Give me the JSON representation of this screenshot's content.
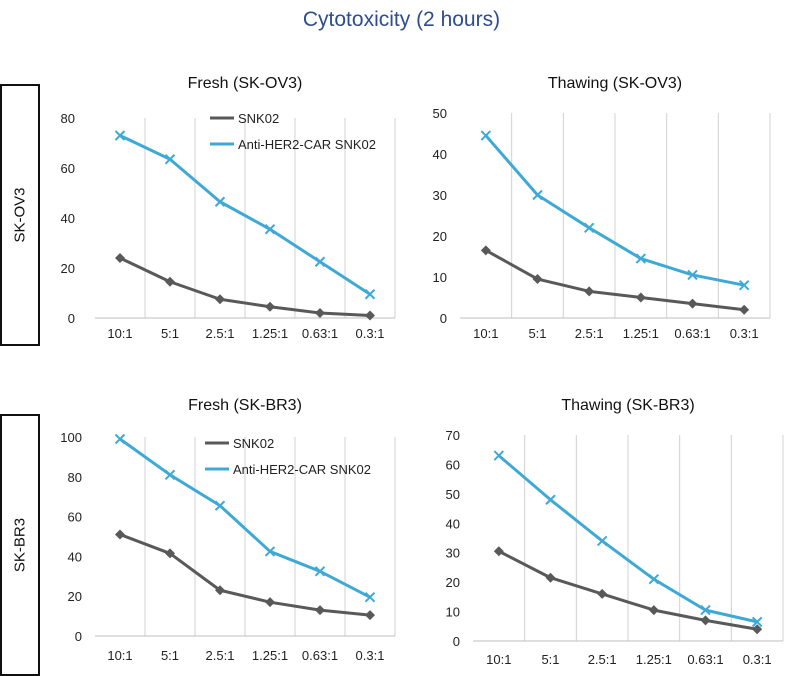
{
  "title": "Cytotoxicity (2 hours)",
  "row_labels": [
    "SK-OV3",
    "SK-BR3"
  ],
  "colors": {
    "snk02": "#595959",
    "car": "#3fa9d6",
    "grid": "#d0d0d0",
    "axis": "#bfbfbf",
    "title": "#2e4d8f"
  },
  "chart_data": [
    {
      "type": "line",
      "title": "Fresh (SK-OV3)",
      "categories": [
        "10:1",
        "5:1",
        "2.5:1",
        "1.25:1",
        "0.63:1",
        "0.3:1"
      ],
      "ylim": [
        0,
        80
      ],
      "yticks": [
        0,
        20,
        40,
        60,
        80
      ],
      "legend": "top-center",
      "series": [
        {
          "name": "SNK02",
          "values": [
            24,
            14.5,
            7.5,
            4.5,
            2,
            1
          ]
        },
        {
          "name": "Anti-HER2-CAR SNK02",
          "values": [
            73,
            63.5,
            46.5,
            35.5,
            22.5,
            9.5
          ]
        }
      ]
    },
    {
      "type": "line",
      "title": "Thawing (SK-OV3)",
      "categories": [
        "10:1",
        "5:1",
        "2.5:1",
        "1.25:1",
        "0.63:1",
        "0.3:1"
      ],
      "ylim": [
        0,
        50
      ],
      "yticks": [
        0,
        10,
        20,
        30,
        40,
        50
      ],
      "legend": "none",
      "series": [
        {
          "name": "SNK02",
          "values": [
            16.5,
            9.5,
            6.5,
            5,
            3.5,
            2
          ]
        },
        {
          "name": "Anti-HER2-CAR SNK02",
          "values": [
            44.5,
            30,
            22,
            14.5,
            10.5,
            8
          ]
        }
      ]
    },
    {
      "type": "line",
      "title": "Fresh (SK-BR3)",
      "categories": [
        "10:1",
        "5:1",
        "2.5:1",
        "1.25:1",
        "0.63:1",
        "0.3:1"
      ],
      "ylim": [
        0,
        100
      ],
      "yticks": [
        0,
        20,
        40,
        60,
        80,
        100
      ],
      "legend": "top-center",
      "series": [
        {
          "name": "SNK02",
          "values": [
            51,
            41.5,
            23,
            17,
            13,
            10.5
          ]
        },
        {
          "name": "Anti-HER2-CAR SNK02",
          "values": [
            99,
            81,
            65.5,
            42.5,
            32.5,
            19.5
          ]
        }
      ]
    },
    {
      "type": "line",
      "title": "Thawing (SK-BR3)",
      "categories": [
        "10:1",
        "5:1",
        "2.5:1",
        "1.25:1",
        "0.63:1",
        "0.3:1"
      ],
      "ylim": [
        0,
        70
      ],
      "yticks": [
        0,
        10,
        20,
        30,
        40,
        50,
        60,
        70
      ],
      "legend": "none",
      "series": [
        {
          "name": "SNK02",
          "values": [
            30.5,
            21.5,
            16,
            10.5,
            7,
            4
          ]
        },
        {
          "name": "Anti-HER2-CAR SNK02",
          "values": [
            63,
            48,
            34,
            21,
            10.5,
            6.5
          ]
        }
      ]
    }
  ]
}
